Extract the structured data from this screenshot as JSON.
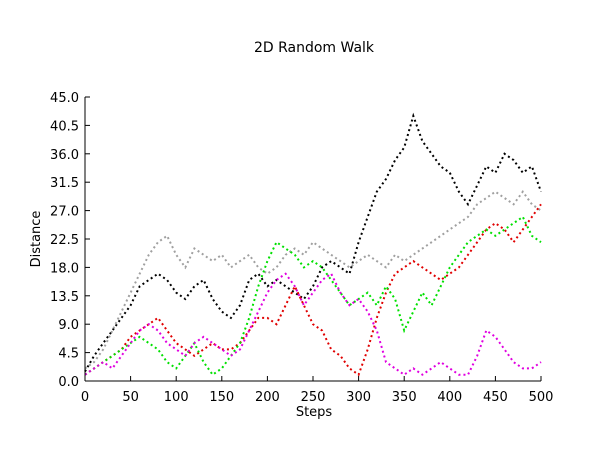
{
  "chart_data": {
    "type": "line",
    "title": "2D Random Walk",
    "xlabel": "Steps",
    "ylabel": "Distance",
    "xlim": [
      0,
      500
    ],
    "ylim": [
      0,
      45
    ],
    "x_ticks": [
      "0",
      "50",
      "100",
      "150",
      "200",
      "250",
      "300",
      "350",
      "400",
      "450",
      "500"
    ],
    "y_ticks": [
      "0.0",
      "4.5",
      "9.0",
      "13.5",
      "18.0",
      "22.5",
      "27.0",
      "31.5",
      "36.0",
      "40.5",
      "45.0"
    ],
    "grid": false,
    "legend": "none",
    "marker": "dotted",
    "series": [
      {
        "color": "#000000",
        "x": [
          0,
          10,
          20,
          30,
          40,
          50,
          60,
          70,
          80,
          90,
          100,
          110,
          120,
          130,
          140,
          150,
          160,
          170,
          180,
          190,
          200,
          210,
          220,
          230,
          240,
          250,
          260,
          270,
          280,
          290,
          300,
          310,
          320,
          330,
          340,
          350,
          360,
          370,
          380,
          390,
          400,
          410,
          420,
          430,
          440,
          450,
          460,
          470,
          480,
          490,
          500
        ],
        "values": [
          1.5,
          4,
          6,
          8,
          10,
          12,
          15,
          16,
          17,
          16,
          14,
          13,
          15,
          16,
          13,
          11,
          10,
          12,
          16,
          17,
          15,
          16,
          15,
          14,
          13,
          15,
          18,
          19,
          18,
          17,
          22,
          26,
          30,
          32,
          35,
          37,
          42,
          38,
          36,
          34,
          33,
          30,
          28,
          31,
          34,
          33,
          36,
          35,
          33,
          34,
          30
        ]
      },
      {
        "color": "#a0a0a0",
        "x": [
          0,
          10,
          20,
          30,
          40,
          50,
          60,
          70,
          80,
          90,
          100,
          110,
          120,
          130,
          140,
          150,
          160,
          170,
          180,
          190,
          200,
          210,
          220,
          230,
          240,
          250,
          260,
          270,
          280,
          290,
          300,
          310,
          320,
          330,
          340,
          350,
          360,
          370,
          380,
          390,
          400,
          410,
          420,
          430,
          440,
          450,
          460,
          470,
          480,
          490,
          500
        ],
        "values": [
          2,
          3,
          5,
          8,
          11,
          14,
          17,
          20,
          22,
          23,
          20,
          18,
          21,
          20,
          19,
          20,
          18,
          19,
          20,
          18,
          17,
          18,
          20,
          21,
          20,
          22,
          21,
          20,
          19,
          18,
          19,
          20,
          19,
          18,
          20,
          19,
          20,
          21,
          22,
          23,
          24,
          25,
          26,
          28,
          29,
          30,
          29,
          28,
          30,
          28,
          27
        ]
      },
      {
        "color": "#e00000",
        "x": [
          0,
          10,
          20,
          30,
          40,
          50,
          60,
          70,
          80,
          90,
          100,
          110,
          120,
          130,
          140,
          150,
          160,
          170,
          180,
          190,
          200,
          210,
          220,
          230,
          240,
          250,
          260,
          270,
          280,
          290,
          300,
          310,
          320,
          330,
          340,
          350,
          360,
          370,
          380,
          390,
          400,
          410,
          420,
          430,
          440,
          450,
          460,
          470,
          480,
          490,
          500
        ],
        "values": [
          1,
          2,
          3,
          4,
          5,
          7,
          8,
          9,
          10,
          8,
          6,
          5,
          4,
          5,
          6,
          5,
          5,
          6,
          8,
          10,
          10,
          9,
          12,
          15,
          12,
          9,
          8,
          5,
          4,
          2,
          1,
          5,
          10,
          14,
          17,
          18,
          19,
          18,
          17,
          16,
          17,
          18,
          20,
          22,
          24,
          25,
          24,
          22,
          24,
          26,
          28
        ]
      },
      {
        "color": "#00e000",
        "x": [
          0,
          10,
          20,
          30,
          40,
          50,
          60,
          70,
          80,
          90,
          100,
          110,
          120,
          130,
          140,
          150,
          160,
          170,
          180,
          190,
          200,
          210,
          220,
          230,
          240,
          250,
          260,
          270,
          280,
          290,
          300,
          310,
          320,
          330,
          340,
          350,
          360,
          370,
          380,
          390,
          400,
          410,
          420,
          430,
          440,
          450,
          460,
          470,
          480,
          490,
          500
        ],
        "values": [
          1,
          2,
          3,
          4,
          5,
          6,
          7,
          6,
          5,
          3,
          2,
          4,
          6,
          3,
          1,
          2,
          4,
          6,
          10,
          15,
          19,
          22,
          21,
          20,
          18,
          19,
          18,
          16,
          14,
          12,
          13,
          14,
          12,
          15,
          13,
          8,
          11,
          14,
          12,
          15,
          18,
          20,
          22,
          23,
          24,
          23,
          24,
          25,
          26,
          23,
          22
        ]
      },
      {
        "color": "#e000e0",
        "x": [
          0,
          10,
          20,
          30,
          40,
          50,
          60,
          70,
          80,
          90,
          100,
          110,
          120,
          130,
          140,
          150,
          160,
          170,
          180,
          190,
          200,
          210,
          220,
          230,
          240,
          250,
          260,
          270,
          280,
          290,
          300,
          310,
          320,
          330,
          340,
          350,
          360,
          370,
          380,
          390,
          400,
          410,
          420,
          430,
          440,
          450,
          460,
          470,
          480,
          490,
          500
        ],
        "values": [
          1,
          2,
          3,
          2,
          4,
          6,
          8,
          9,
          8,
          6,
          5,
          4,
          6,
          7,
          6,
          5,
          4,
          5,
          8,
          11,
          14,
          16,
          17,
          15,
          12,
          14,
          16,
          17,
          14,
          12,
          13,
          11,
          8,
          3,
          2,
          1,
          2,
          1,
          2,
          3,
          2,
          1,
          1,
          4,
          8,
          7,
          5,
          3,
          2,
          2,
          3
        ]
      }
    ]
  }
}
